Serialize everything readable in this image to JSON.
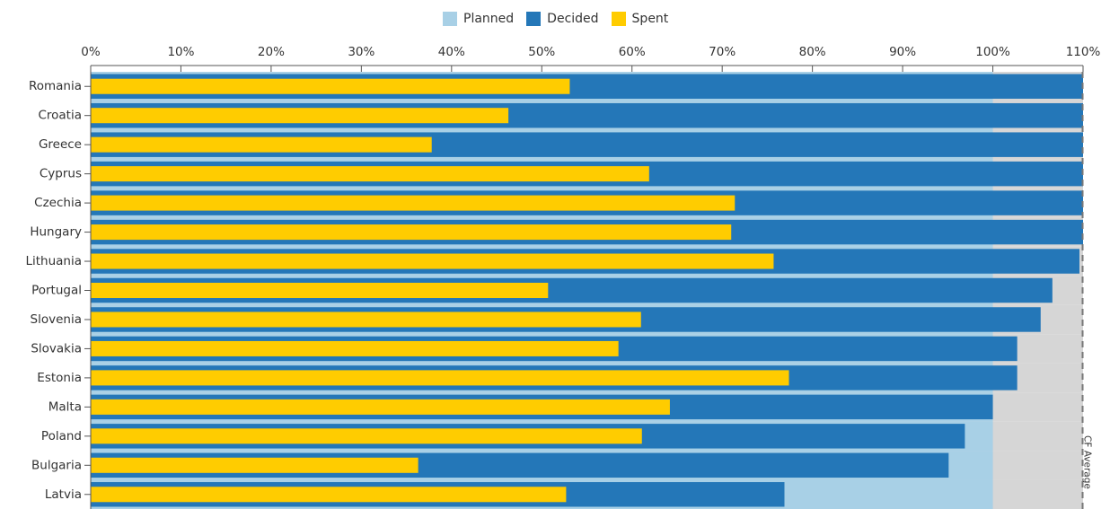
{
  "chart_data": {
    "type": "bar",
    "orientation": "horizontal",
    "legend": {
      "position": "top-center",
      "items": [
        {
          "name": "Planned",
          "color": "#a8d0e6"
        },
        {
          "name": "Decided",
          "color": "#2477b8"
        },
        {
          "name": "Spent",
          "color": "#ffcc00"
        }
      ]
    },
    "x_ticks": [
      "0%",
      "10%",
      "20%",
      "30%",
      "40%",
      "50%",
      "60%",
      "70%",
      "80%",
      "90%",
      "100%",
      "110%"
    ],
    "xlim": [
      0,
      110
    ],
    "background_band_color": "#d6d6d6",
    "reference_line": {
      "label": "CF Average",
      "value": 110
    },
    "categories": [
      "Romania",
      "Croatia",
      "Greece",
      "Cyprus",
      "Czechia",
      "Hungary",
      "Lithuania",
      "Portugal",
      "Slovenia",
      "Slovakia",
      "Estonia",
      "Malta",
      "Poland",
      "Bulgaria",
      "Latvia"
    ],
    "series": [
      {
        "name": "Planned",
        "values": [
          100,
          100,
          100,
          100,
          100,
          100,
          100,
          100,
          100,
          100,
          100,
          100,
          100,
          100,
          100
        ]
      },
      {
        "name": "Decided",
        "values": [
          110,
          110,
          110,
          110,
          110,
          110,
          109.6,
          106.6,
          105.3,
          102.7,
          102.7,
          100,
          96.9,
          95.1,
          76.9
        ]
      },
      {
        "name": "Spent",
        "values": [
          53.1,
          46.3,
          37.8,
          61.9,
          71.4,
          71.0,
          75.7,
          50.7,
          61.0,
          58.5,
          77.4,
          64.2,
          61.1,
          36.3,
          52.7
        ]
      }
    ]
  }
}
